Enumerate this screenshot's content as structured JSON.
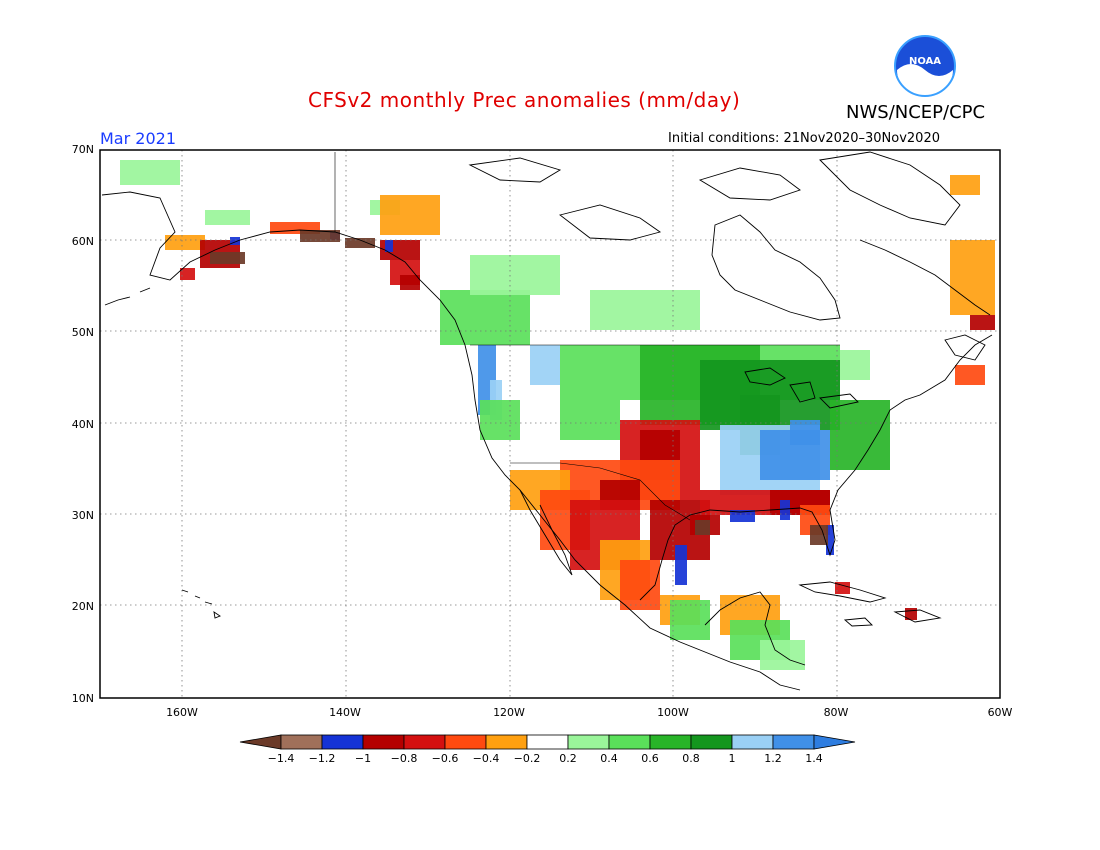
{
  "header": {
    "title": "CFSv2 monthly Prec anomalies (mm/day)",
    "org": "NWS/NCEP/CPC",
    "month": "Mar 2021",
    "initial_conditions": "Initial conditions: 21Nov2020–30Nov2020",
    "logo_text": "NOAA"
  },
  "map": {
    "lat_labels": [
      "70N",
      "60N",
      "50N",
      "40N",
      "30N",
      "20N",
      "10N"
    ],
    "lon_labels": [
      "160W",
      "140W",
      "120W",
      "100W",
      "80W",
      "60W"
    ]
  },
  "colorbar": {
    "labels": [
      "−1.4",
      "−1.2",
      "−1",
      "−0.8",
      "−0.6",
      "−0.4",
      "−0.2",
      "0.2",
      "0.4",
      "0.6",
      "0.8",
      "1",
      "1.2",
      "1.4"
    ],
    "colors": [
      "#a0705a",
      "#1533d6",
      "#b40000",
      "#d41010",
      "#ff4a10",
      "#ffa010",
      "#ffffff",
      "#9af59a",
      "#5ae05a",
      "#28b428",
      "#14961e",
      "#9ad0f5",
      "#4090e8"
    ],
    "low_end_color": "#6b3a28",
    "high_end_color": "#2e7de0"
  }
}
